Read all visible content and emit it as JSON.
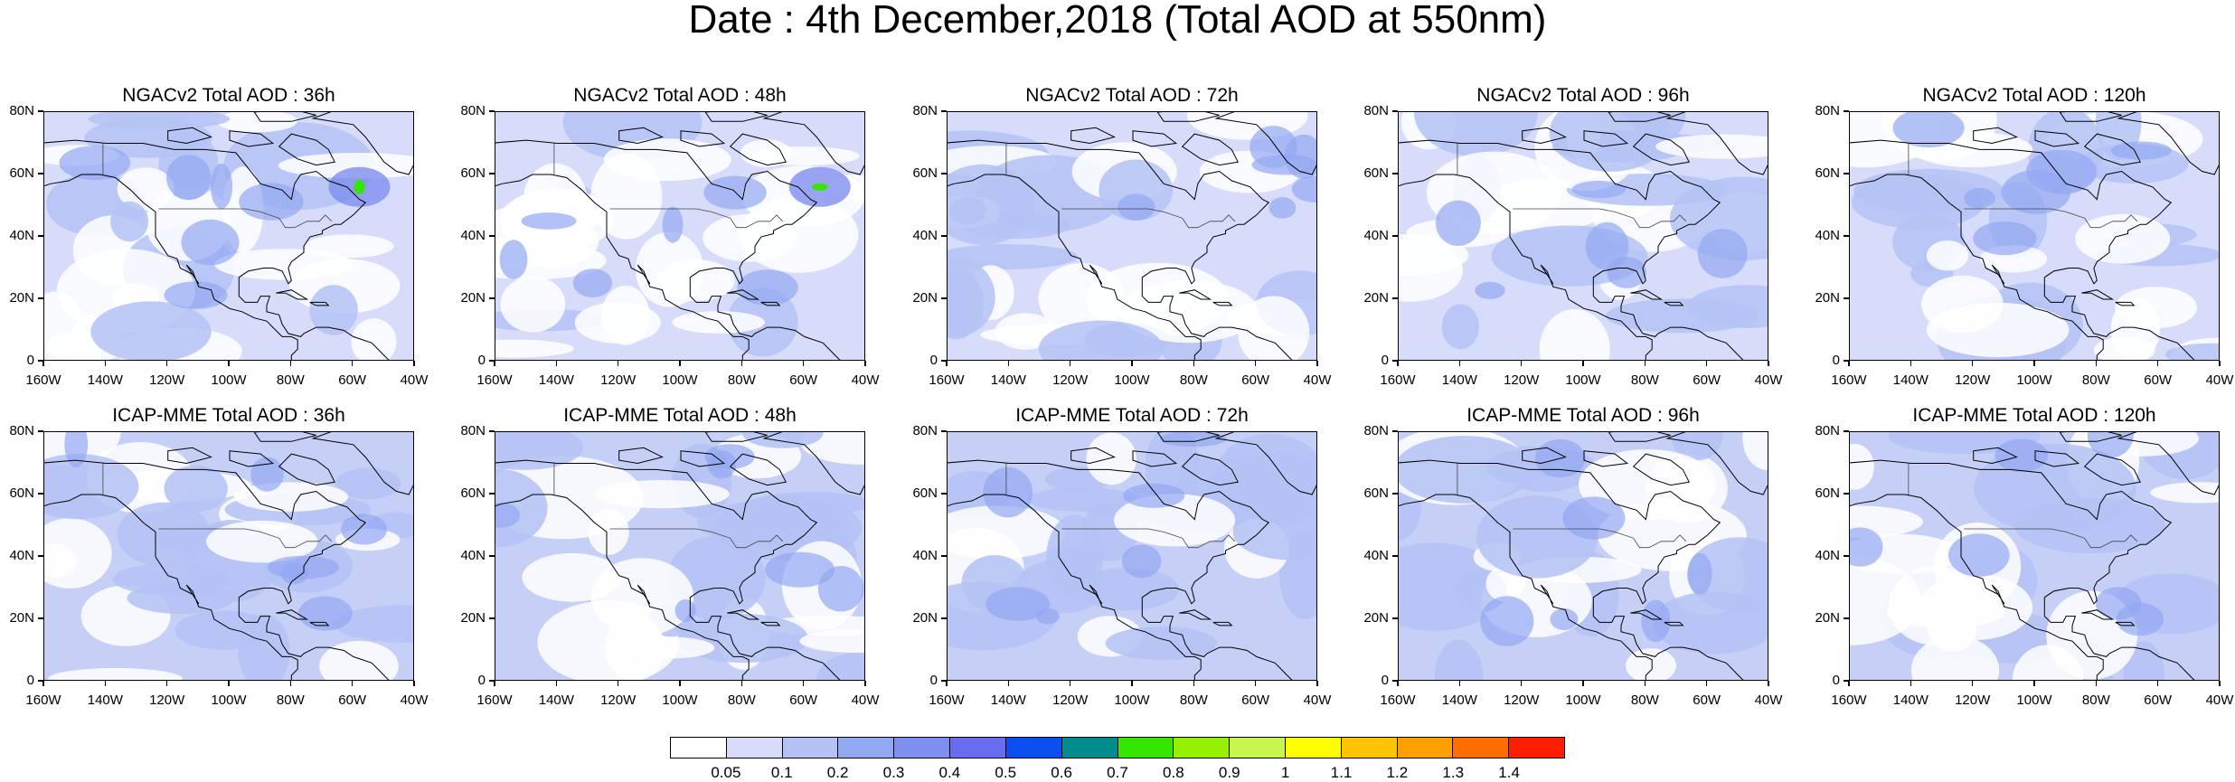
{
  "title": "Date : 4th December,2018 (Total AOD at 550nm)",
  "lat_labels": [
    "80N",
    "60N",
    "40N",
    "20N",
    "0"
  ],
  "lon_labels": [
    "160W",
    "140W",
    "120W",
    "100W",
    "80W",
    "60W",
    "40W"
  ],
  "panels": [
    {
      "title": "NGACv2 Total AOD : 36h",
      "model": "NGACv2",
      "lead": "36h"
    },
    {
      "title": "NGACv2 Total AOD : 48h",
      "model": "NGACv2",
      "lead": "48h"
    },
    {
      "title": "NGACv2 Total AOD : 72h",
      "model": "NGACv2",
      "lead": "72h"
    },
    {
      "title": "NGACv2 Total AOD : 96h",
      "model": "NGACv2",
      "lead": "96h"
    },
    {
      "title": "NGACv2 Total AOD : 120h",
      "model": "NGACv2",
      "lead": "120h"
    },
    {
      "title": "ICAP-MME Total AOD : 36h",
      "model": "ICAP-MME",
      "lead": "36h"
    },
    {
      "title": "ICAP-MME Total AOD : 48h",
      "model": "ICAP-MME",
      "lead": "48h"
    },
    {
      "title": "ICAP-MME Total AOD : 72h",
      "model": "ICAP-MME",
      "lead": "72h"
    },
    {
      "title": "ICAP-MME Total AOD : 96h",
      "model": "ICAP-MME",
      "lead": "96h"
    },
    {
      "title": "ICAP-MME Total AOD : 120h",
      "model": "ICAP-MME",
      "lead": "120h"
    }
  ],
  "colorbar": {
    "labels": [
      "0.05",
      "0.1",
      "0.2",
      "0.3",
      "0.4",
      "0.5",
      "0.6",
      "0.7",
      "0.8",
      "0.9",
      "1",
      "1.1",
      "1.2",
      "1.3",
      "1.4"
    ],
    "colors": [
      "#ffffff",
      "#d6dcfa",
      "#b4c2f5",
      "#93a8f2",
      "#7f8ff0",
      "#6a6cf0",
      "#0a50f0",
      "#008c8c",
      "#35e600",
      "#96f000",
      "#c8f550",
      "#ffff00",
      "#ffc300",
      "#ffa000",
      "#ff6e00",
      "#ff1e00"
    ]
  }
}
